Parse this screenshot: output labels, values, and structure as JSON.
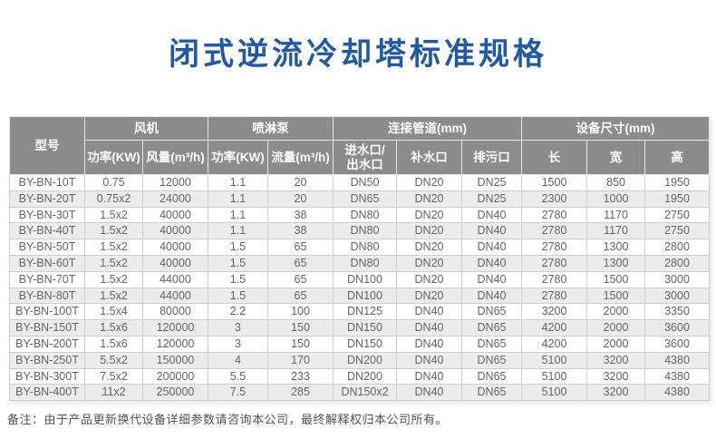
{
  "page": {
    "title": "闭式逆流冷却塔标准规格",
    "note": "备注：由于产品更新换代设备详细参数请咨询本公司，最终解释权归本公司所有。"
  },
  "colors": {
    "title_blue": "#1e5aa7",
    "header_gray": "#8c8c8c",
    "stripe_gray": "#ececec",
    "text_gray": "#666666"
  },
  "table": {
    "header_groups": [
      {
        "label": "型号"
      },
      {
        "label": "风机"
      },
      {
        "label": "喷淋泵"
      },
      {
        "label": "连接管道(mm)"
      },
      {
        "label": "设备尺寸(mm)"
      }
    ],
    "sub_headers": [
      "功率(KW)",
      "风量(m³/h)",
      "功率(KW)",
      "流量(m³/h)",
      "进水口/\n出水口",
      "补水口",
      "排污口",
      "长",
      "宽",
      "高"
    ],
    "rows": [
      [
        "BY-BN-10T",
        "0.75",
        "12000",
        "1.1",
        "20",
        "DN50",
        "DN20",
        "DN25",
        "1500",
        "850",
        "1950"
      ],
      [
        "BY-BN-20T",
        "0.75x2",
        "24000",
        "1.1",
        "20",
        "DN65",
        "DN20",
        "DN25",
        "2300",
        "1000",
        "1950"
      ],
      [
        "BY-BN-30T",
        "1.5x2",
        "40000",
        "1.1",
        "38",
        "DN80",
        "DN20",
        "DN40",
        "2780",
        "1170",
        "2750"
      ],
      [
        "BY-BN-40T",
        "1.5x2",
        "40000",
        "1.1",
        "38",
        "DN80",
        "DN20",
        "DN40",
        "2780",
        "1170",
        "2750"
      ],
      [
        "BY-BN-50T",
        "1.5x2",
        "40000",
        "1.5",
        "65",
        "DN80",
        "DN20",
        "DN40",
        "2780",
        "1300",
        "2800"
      ],
      [
        "BY-BN-60T",
        "1.5x2",
        "40000",
        "1.5",
        "65",
        "DN80",
        "DN20",
        "DN40",
        "2780",
        "1300",
        "2800"
      ],
      [
        "BY-BN-70T",
        "1.5x2",
        "44000",
        "1.5",
        "65",
        "DN100",
        "DN20",
        "DN40",
        "2780",
        "1500",
        "3000"
      ],
      [
        "BY-BN-80T",
        "1.5x2",
        "44000",
        "1.5",
        "65",
        "DN100",
        "DN20",
        "DN40",
        "2780",
        "1500",
        "3000"
      ],
      [
        "BY-BN-100T",
        "1.5x4",
        "80000",
        "2.2",
        "100",
        "DN125",
        "DN40",
        "DN65",
        "3200",
        "2000",
        "3350"
      ],
      [
        "BY-BN-150T",
        "1.5x6",
        "120000",
        "3",
        "150",
        "DN150",
        "DN40",
        "DN65",
        "4200",
        "2000",
        "3600"
      ],
      [
        "BY-BN-200T",
        "1.5x6",
        "120000",
        "3",
        "150",
        "DN150",
        "DN40",
        "DN65",
        "4200",
        "2000",
        "3600"
      ],
      [
        "BY-BN-250T",
        "5.5x2",
        "150000",
        "4",
        "170",
        "DN200",
        "DN40",
        "DN65",
        "5100",
        "3200",
        "4380"
      ],
      [
        "BY-BN-300T",
        "7.5x2",
        "200000",
        "5.5",
        "233",
        "DN200",
        "DN40",
        "DN65",
        "5100",
        "3200",
        "4380"
      ],
      [
        "BY-BN-400T",
        "11x2",
        "250000",
        "7.5",
        "285",
        "DN150x2",
        "DN40",
        "DN65",
        "5100",
        "3200",
        "4380"
      ]
    ]
  }
}
